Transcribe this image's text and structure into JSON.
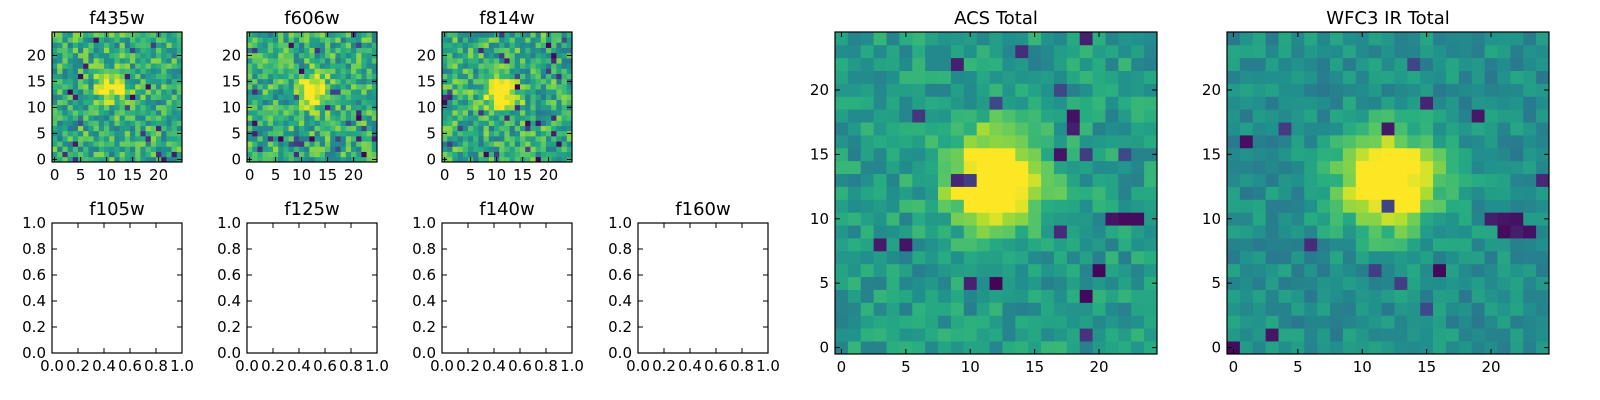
{
  "colormap": "viridis",
  "colormap_stops": [
    "#440154",
    "#472c7a",
    "#3b518b",
    "#2c718e",
    "#21908d",
    "#27ad81",
    "#5cc863",
    "#aadc32",
    "#fde725"
  ],
  "chart_data": [
    {
      "type": "heatmap",
      "title": "f435w",
      "xlim": [
        -0.5,
        24.5
      ],
      "ylim": [
        -0.5,
        24.5
      ],
      "xticks": [
        "0",
        "5",
        "10",
        "15",
        "20"
      ],
      "yticks": [
        "0",
        "5",
        "10",
        "15",
        "20"
      ],
      "grid_size": [
        25,
        25
      ],
      "data": {
        "description": "noisy 25x25 cutout, faint source near (11,14)",
        "center": [
          11,
          14
        ],
        "peak": 0.75,
        "background": 0.62,
        "noise": 0.22
      }
    },
    {
      "type": "heatmap",
      "title": "f606w",
      "xlim": [
        -0.5,
        24.5
      ],
      "ylim": [
        -0.5,
        24.5
      ],
      "xticks": [
        "0",
        "5",
        "10",
        "15",
        "20"
      ],
      "yticks": [
        "0",
        "5",
        "10",
        "15",
        "20"
      ],
      "grid_size": [
        25,
        25
      ],
      "data": {
        "description": "noisy 25x25 cutout, source near (12,13)",
        "center": [
          12,
          13
        ],
        "peak": 0.9,
        "background": 0.62,
        "noise": 0.22
      }
    },
    {
      "type": "heatmap",
      "title": "f814w",
      "xlim": [
        -0.5,
        24.5
      ],
      "ylim": [
        -0.5,
        24.5
      ],
      "xticks": [
        "0",
        "5",
        "10",
        "15",
        "20"
      ],
      "yticks": [
        "0",
        "5",
        "10",
        "15",
        "20"
      ],
      "grid_size": [
        25,
        25
      ],
      "data": {
        "description": "noisy 25x25 cutout, source near (11,13)",
        "center": [
          11,
          13
        ],
        "peak": 0.92,
        "background": 0.62,
        "noise": 0.22
      }
    },
    {
      "type": "empty",
      "title": "f105w",
      "xlim": [
        0,
        1
      ],
      "ylim": [
        0,
        1
      ],
      "xticks": [
        "0.0",
        "0.2",
        "0.4",
        "0.6",
        "0.8",
        "1.0"
      ],
      "yticks": [
        "0.0",
        "0.2",
        "0.4",
        "0.6",
        "0.8",
        "1.0"
      ]
    },
    {
      "type": "empty",
      "title": "f125w",
      "xlim": [
        0,
        1
      ],
      "ylim": [
        0,
        1
      ],
      "xticks": [
        "0.0",
        "0.2",
        "0.4",
        "0.6",
        "0.8",
        "1.0"
      ],
      "yticks": [
        "0.0",
        "0.2",
        "0.4",
        "0.6",
        "0.8",
        "1.0"
      ]
    },
    {
      "type": "empty",
      "title": "f140w",
      "xlim": [
        0,
        1
      ],
      "ylim": [
        0,
        1
      ],
      "xticks": [
        "0.0",
        "0.2",
        "0.4",
        "0.6",
        "0.8",
        "1.0"
      ],
      "yticks": [
        "0.0",
        "0.2",
        "0.4",
        "0.6",
        "0.8",
        "1.0"
      ]
    },
    {
      "type": "empty",
      "title": "f160w",
      "xlim": [
        0,
        1
      ],
      "ylim": [
        0,
        1
      ],
      "xticks": [
        "0.0",
        "0.2",
        "0.4",
        "0.6",
        "0.8",
        "1.0"
      ],
      "yticks": [
        "0.0",
        "0.2",
        "0.4",
        "0.6",
        "0.8",
        "1.0"
      ]
    },
    {
      "type": "heatmap",
      "title": "ACS Total",
      "xlim": [
        -0.5,
        24.5
      ],
      "ylim": [
        -0.5,
        24.5
      ],
      "xticks": [
        "0",
        "5",
        "10",
        "15",
        "20"
      ],
      "yticks": [
        "0",
        "5",
        "10",
        "15",
        "20"
      ],
      "grid_size": [
        25,
        25
      ],
      "data": {
        "description": "stacked 25x25 cutout, bright source near (12,13), dark patches near (19,4) and (22,10)",
        "center": [
          12,
          13
        ],
        "peak": 1.0,
        "background": 0.55,
        "noise": 0.12
      }
    },
    {
      "type": "heatmap",
      "title": "WFC3 IR Total",
      "xlim": [
        -0.5,
        24.5
      ],
      "ylim": [
        -0.5,
        24.5
      ],
      "xticks": [
        "0",
        "5",
        "10",
        "15",
        "20"
      ],
      "yticks": [
        "0",
        "5",
        "10",
        "15",
        "20"
      ],
      "grid_size": [
        25,
        25
      ],
      "data": {
        "description": "stacked 25x25 cutout, bright source near (12,13), dark patches near (21,10) and (16,6)",
        "center": [
          12,
          13
        ],
        "peak": 1.0,
        "background": 0.5,
        "noise": 0.1
      }
    }
  ]
}
